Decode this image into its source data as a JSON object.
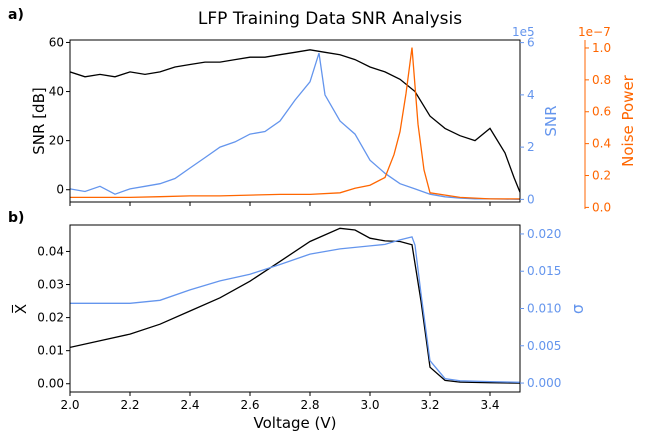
{
  "figure": {
    "title": "LFP Training Data SNR Analysis"
  },
  "colors": {
    "black": "#000000",
    "blue": "#6495ed",
    "orange": "#ff6600"
  },
  "chart_data": [
    {
      "panel_label": "a)",
      "type": "line",
      "title": "LFP Training Data SNR Analysis",
      "xlim": [
        2.0,
        3.5
      ],
      "axes": {
        "left": {
          "label": "SNR [dB]",
          "ylim": [
            -5,
            61
          ],
          "ticks": [
            "0",
            "20",
            "40",
            "60"
          ],
          "tick_values": [
            0,
            20,
            40,
            60
          ],
          "color": "#000000"
        },
        "right1": {
          "label": "SNR",
          "ylim": [
            -0.1,
            6.1
          ],
          "ticks": [
            "0",
            "2",
            "4",
            "6"
          ],
          "tick_values": [
            0,
            2,
            4,
            6
          ],
          "offset_label": "1e5",
          "color": "#6495ed"
        },
        "right2": {
          "label": "Noise Power",
          "ylim": [
            -0.01,
            1.05
          ],
          "ticks": [
            "0.0",
            "0.2",
            "0.4",
            "0.6",
            "0.8",
            "1.0"
          ],
          "tick_values": [
            0,
            0.2,
            0.4,
            0.6,
            0.8,
            1.0
          ],
          "offset_label": "1e−7",
          "color": "#ff6600"
        }
      },
      "series": [
        {
          "name": "SNR [dB]",
          "axis": "left",
          "color": "#000000",
          "x": [
            2.0,
            2.05,
            2.1,
            2.15,
            2.2,
            2.25,
            2.3,
            2.35,
            2.4,
            2.45,
            2.5,
            2.55,
            2.6,
            2.65,
            2.7,
            2.75,
            2.8,
            2.85,
            2.9,
            2.95,
            3.0,
            3.05,
            3.1,
            3.15,
            3.2,
            3.25,
            3.3,
            3.35,
            3.4,
            3.45,
            3.48,
            3.5
          ],
          "y": [
            48,
            46,
            47,
            46,
            48,
            47,
            48,
            50,
            51,
            52,
            52,
            53,
            54,
            54,
            55,
            56,
            57,
            56,
            55,
            53,
            50,
            48,
            45,
            40,
            30,
            25,
            22,
            20,
            25,
            15,
            5,
            -1
          ]
        },
        {
          "name": "SNR",
          "axis": "right1",
          "color": "#6495ed",
          "x": [
            2.0,
            2.05,
            2.1,
            2.15,
            2.2,
            2.25,
            2.3,
            2.35,
            2.4,
            2.45,
            2.5,
            2.55,
            2.6,
            2.65,
            2.7,
            2.75,
            2.8,
            2.83,
            2.85,
            2.9,
            2.95,
            3.0,
            3.05,
            3.1,
            3.15,
            3.2,
            3.25,
            3.3,
            3.35,
            3.4,
            3.45,
            3.5
          ],
          "y": [
            0.4,
            0.3,
            0.5,
            0.2,
            0.4,
            0.5,
            0.6,
            0.8,
            1.2,
            1.6,
            2.0,
            2.2,
            2.5,
            2.6,
            3.0,
            3.8,
            4.5,
            5.6,
            4.0,
            3.0,
            2.5,
            1.5,
            1.0,
            0.6,
            0.4,
            0.2,
            0.1,
            0.05,
            0.02,
            0.02,
            0.01,
            0.0
          ]
        },
        {
          "name": "Noise Power",
          "axis": "right2",
          "color": "#ff6600",
          "x": [
            2.0,
            2.1,
            2.2,
            2.3,
            2.4,
            2.5,
            2.6,
            2.7,
            2.8,
            2.9,
            2.95,
            3.0,
            3.05,
            3.08,
            3.1,
            3.12,
            3.14,
            3.16,
            3.18,
            3.2,
            3.3,
            3.4,
            3.5
          ],
          "y": [
            0.02,
            0.02,
            0.02,
            0.025,
            0.03,
            0.03,
            0.035,
            0.04,
            0.04,
            0.05,
            0.08,
            0.1,
            0.15,
            0.3,
            0.45,
            0.7,
            1.0,
            0.5,
            0.2,
            0.05,
            0.02,
            0.01,
            0.01
          ]
        }
      ]
    },
    {
      "panel_label": "b)",
      "type": "line",
      "xlabel": "Voltage (V)",
      "xlim": [
        2.0,
        3.5
      ],
      "xticks": [
        "2.0",
        "2.2",
        "2.4",
        "2.6",
        "2.8",
        "3.0",
        "3.2",
        "3.4"
      ],
      "xtick_values": [
        2.0,
        2.2,
        2.4,
        2.6,
        2.8,
        3.0,
        3.2,
        3.4
      ],
      "axes": {
        "left": {
          "label": "X̅",
          "ylim": [
            -0.0025,
            0.048
          ],
          "ticks": [
            "0.00",
            "0.01",
            "0.02",
            "0.03",
            "0.04"
          ],
          "tick_values": [
            0,
            0.01,
            0.02,
            0.03,
            0.04
          ],
          "color": "#000000"
        },
        "right": {
          "label": "σ",
          "ylim": [
            -0.0012,
            0.0212
          ],
          "ticks": [
            "0.000",
            "0.005",
            "0.010",
            "0.015",
            "0.020"
          ],
          "tick_values": [
            0,
            0.005,
            0.01,
            0.015,
            0.02
          ],
          "color": "#6495ed"
        }
      },
      "series": [
        {
          "name": "mean",
          "axis": "left",
          "color": "#000000",
          "x": [
            2.0,
            2.1,
            2.2,
            2.3,
            2.4,
            2.5,
            2.6,
            2.7,
            2.8,
            2.9,
            2.95,
            3.0,
            3.05,
            3.1,
            3.14,
            3.17,
            3.2,
            3.25,
            3.3,
            3.4,
            3.5
          ],
          "y": [
            0.011,
            0.013,
            0.015,
            0.018,
            0.022,
            0.026,
            0.031,
            0.037,
            0.043,
            0.047,
            0.0465,
            0.044,
            0.0432,
            0.043,
            0.042,
            0.025,
            0.005,
            0.001,
            0.0005,
            0.0003,
            0.0002
          ]
        },
        {
          "name": "sigma",
          "axis": "right",
          "color": "#6495ed",
          "x": [
            2.0,
            2.1,
            2.2,
            2.3,
            2.4,
            2.5,
            2.6,
            2.7,
            2.8,
            2.9,
            3.0,
            3.05,
            3.1,
            3.12,
            3.14,
            3.15,
            3.17,
            3.2,
            3.25,
            3.3,
            3.4,
            3.5
          ],
          "y": [
            0.0107,
            0.0107,
            0.0107,
            0.0111,
            0.0125,
            0.0137,
            0.0146,
            0.0159,
            0.0173,
            0.018,
            0.0184,
            0.0186,
            0.0192,
            0.0194,
            0.0196,
            0.0185,
            0.012,
            0.003,
            0.0006,
            0.0003,
            0.0002,
            0.0001
          ]
        }
      ]
    }
  ]
}
